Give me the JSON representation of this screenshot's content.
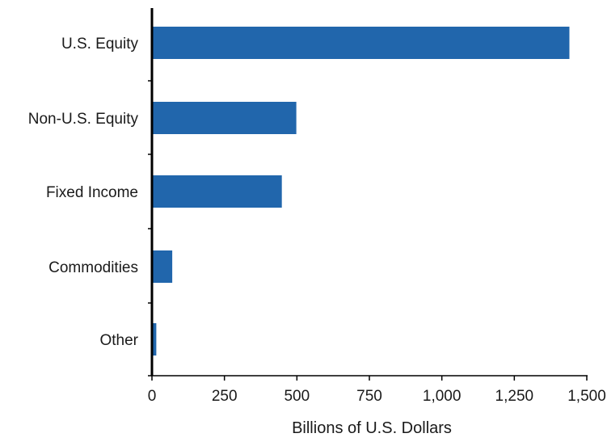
{
  "chart_data": {
    "type": "bar",
    "orientation": "horizontal",
    "categories": [
      "U.S. Equity",
      "Non-U.S. Equity",
      "Fixed Income",
      "Commodities",
      "Other"
    ],
    "values": [
      1440,
      498,
      448,
      70,
      15
    ],
    "xlabel": "Billions of U.S. Dollars",
    "ylabel": "",
    "xlim": [
      0,
      1500
    ],
    "xticks": [
      0,
      250,
      500,
      750,
      1000,
      1250,
      1500
    ],
    "xtick_labels": [
      "0",
      "250",
      "500",
      "750",
      "1,000",
      "1,250",
      "1,500"
    ],
    "grid": false,
    "bar_color": "#2166ac"
  }
}
